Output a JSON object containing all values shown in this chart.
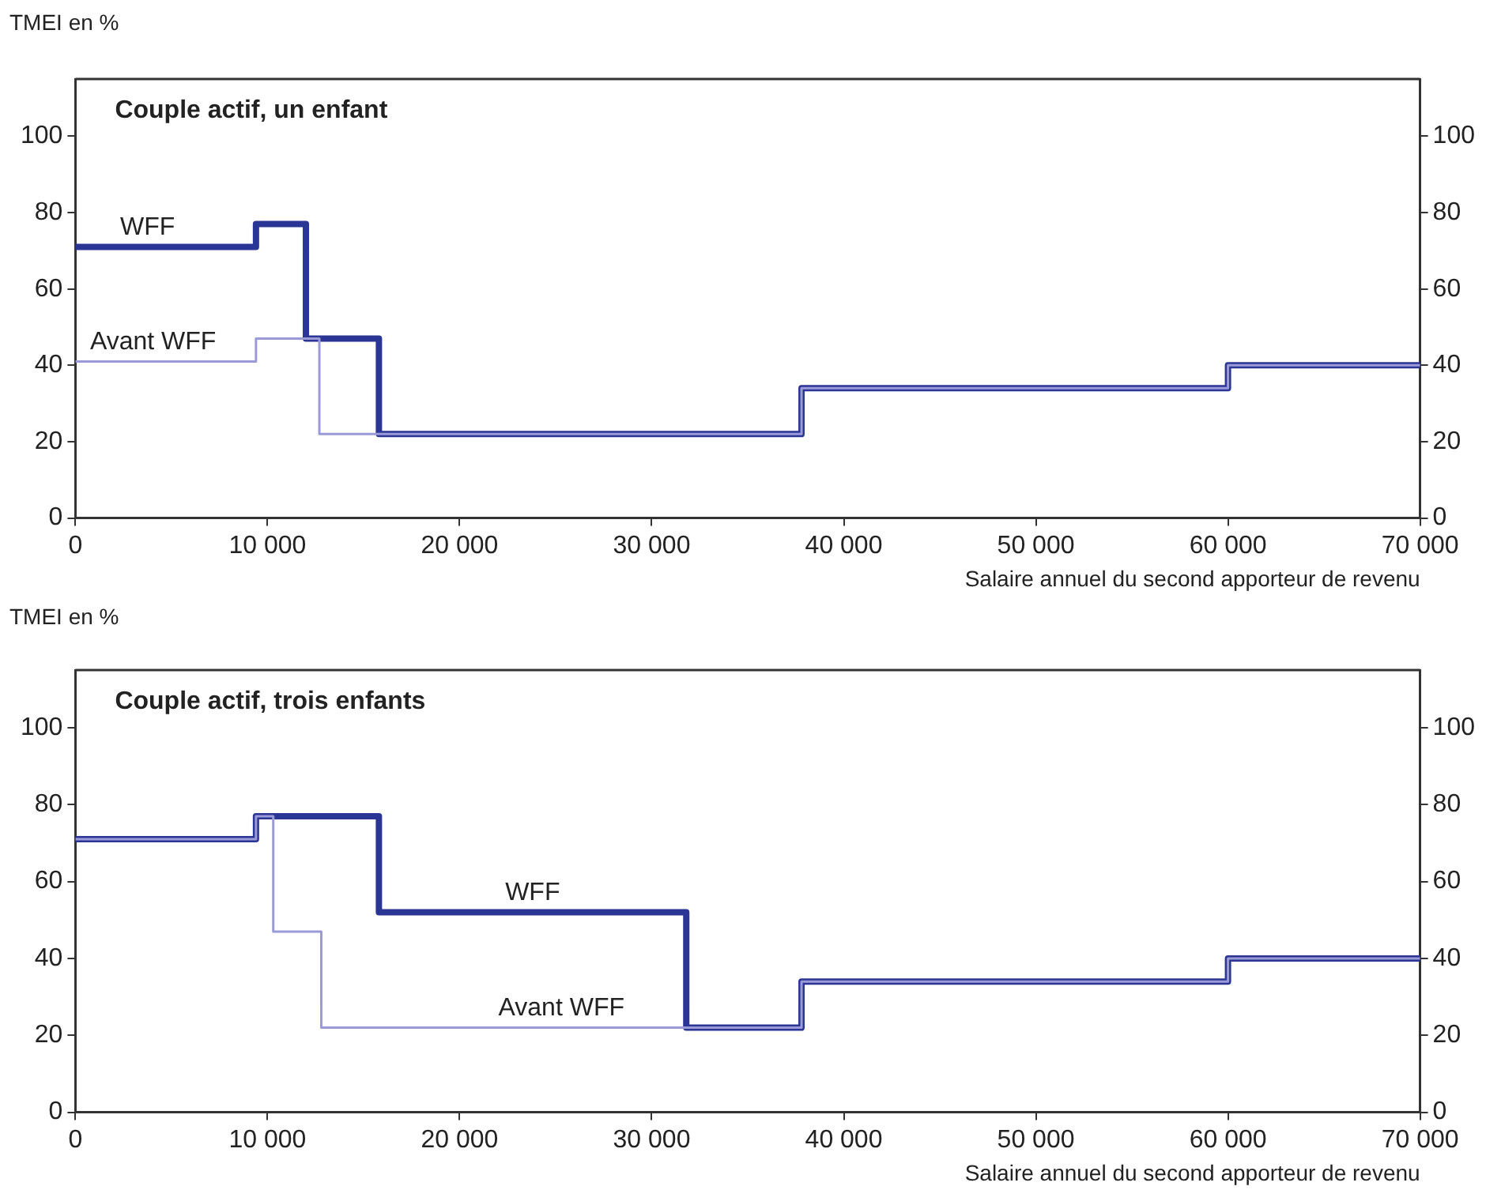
{
  "chart_data": [
    {
      "type": "step",
      "title": "Couple actif, un enfant",
      "ylabel": "TMEI en %",
      "xlabel": "Salaire annuel du second apporteur de revenu",
      "legend": false,
      "grid": false,
      "marker": "none",
      "line_style": "solid",
      "xlim": [
        0,
        70000
      ],
      "xticks": [
        0,
        {
          "value": 10000,
          "label": "10 000"
        },
        {
          "value": 20000,
          "label": "20 000"
        },
        {
          "value": 30000,
          "label": "30 000"
        },
        {
          "value": 40000,
          "label": "40 000"
        },
        {
          "value": 50000,
          "label": "50 000"
        },
        {
          "value": 60000,
          "label": "60 000"
        },
        {
          "value": 70000,
          "label": "70 000"
        }
      ],
      "ylim": [
        0,
        115
      ],
      "yticks": [
        0,
        20,
        40,
        60,
        80,
        100
      ],
      "y2lim": [
        0,
        115
      ],
      "y2ticks": [
        0,
        20,
        40,
        60,
        80,
        100
      ],
      "series": [
        {
          "name": "Avant WFF",
          "color": "#9a9ad8",
          "x": [
            0,
            9400,
            12700,
            37800,
            60000,
            70000
          ],
          "values": [
            41,
            47,
            22,
            34,
            40,
            40
          ]
        },
        {
          "name": "WFF",
          "color": "#2b3595",
          "x": [
            0,
            9400,
            12000,
            15800,
            37800,
            60000,
            70000
          ],
          "values": [
            71,
            77,
            47,
            22,
            34,
            40,
            40
          ]
        }
      ]
    },
    {
      "type": "step",
      "title": "Couple actif, trois enfants",
      "ylabel": "TMEI en %",
      "xlabel": "Salaire annuel du second apporteur de revenu",
      "legend": false,
      "grid": false,
      "marker": "none",
      "line_style": "solid",
      "xlim": [
        0,
        70000
      ],
      "xticks": [
        0,
        {
          "value": 10000,
          "label": "10 000"
        },
        {
          "value": 20000,
          "label": "20 000"
        },
        {
          "value": 30000,
          "label": "30 000"
        },
        {
          "value": 40000,
          "label": "40 000"
        },
        {
          "value": 50000,
          "label": "50 000"
        },
        {
          "value": 60000,
          "label": "60 000"
        },
        {
          "value": 70000,
          "label": "70 000"
        }
      ],
      "ylim": [
        0,
        115
      ],
      "yticks": [
        0,
        20,
        40,
        60,
        80,
        100
      ],
      "y2lim": [
        0,
        115
      ],
      "y2ticks": [
        0,
        20,
        40,
        60,
        80,
        100
      ],
      "series": [
        {
          "name": "Avant WFF",
          "color": "#9a9ad8",
          "x": [
            0,
            9400,
            10300,
            12800,
            37800,
            60000,
            70000
          ],
          "values": [
            71,
            77,
            47,
            22,
            34,
            40,
            40
          ]
        },
        {
          "name": "WFF",
          "color": "#2b3595",
          "x": [
            0,
            9400,
            15800,
            31800,
            37800,
            60000,
            70000
          ],
          "values": [
            71,
            77,
            52,
            22,
            34,
            40,
            40
          ]
        }
      ]
    }
  ]
}
